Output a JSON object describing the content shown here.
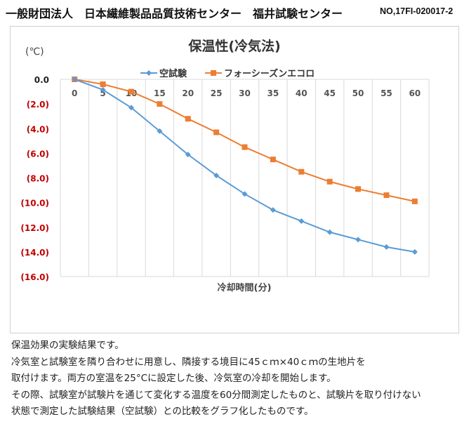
{
  "header": {
    "org": "一般財団法人　日本繊維製品品質技術センター　福井試験センター",
    "doc_no": "NO,17FI-020017-2"
  },
  "chart_data": {
    "type": "line",
    "title": "保温性(冷気法)",
    "ylabel": "(℃)",
    "xlabel": "冷却時間(分)",
    "categories": [
      "0",
      "5",
      "10",
      "15",
      "20",
      "25",
      "30",
      "35",
      "40",
      "45",
      "50",
      "55",
      "60"
    ],
    "ylim": [
      -16,
      0
    ],
    "yticks": [
      0,
      -2,
      -4,
      -6,
      -8,
      -10,
      -12,
      -14,
      -16
    ],
    "ytick_labels": [
      "0.0",
      "(2.0)",
      "(4.0)",
      "(6.0)",
      "(8.0)",
      "(10.0)",
      "(12.0)",
      "(14.0)",
      "(16.0)"
    ],
    "negative_label_color": "#c00000",
    "grid": "vertical",
    "legend": "top",
    "series": [
      {
        "name": "空試験",
        "color": "#5b9bd5",
        "marker": "diamond",
        "values": [
          0,
          -0.85,
          -2.3,
          -4.2,
          -6.1,
          -7.8,
          -9.3,
          -10.6,
          -11.5,
          -12.4,
          -13.0,
          -13.6,
          -14.0
        ]
      },
      {
        "name": "フォーシーズンエコロ",
        "color": "#ed7d31",
        "marker": "square",
        "values": [
          0,
          -0.4,
          -1.0,
          -2.0,
          -3.2,
          -4.3,
          -5.5,
          -6.5,
          -7.5,
          -8.3,
          -8.9,
          -9.4,
          -9.9
        ]
      }
    ]
  },
  "description": [
    "保温効果の実験結果です。",
    "冷気室と試験室を隣り合わせに用意し、隣接する境目に45ｃｍ×40ｃｍの生地片を",
    "取付けます。両方の室温を25°Cに設定した後、冷気室の冷却を開始します。",
    "その際、試験室が試験片を通じて変化する温度を60分間測定したものと、試験片を取り付けない",
    "状態で測定した試験結果（空試験）との比較をグラフ化したものです。"
  ]
}
